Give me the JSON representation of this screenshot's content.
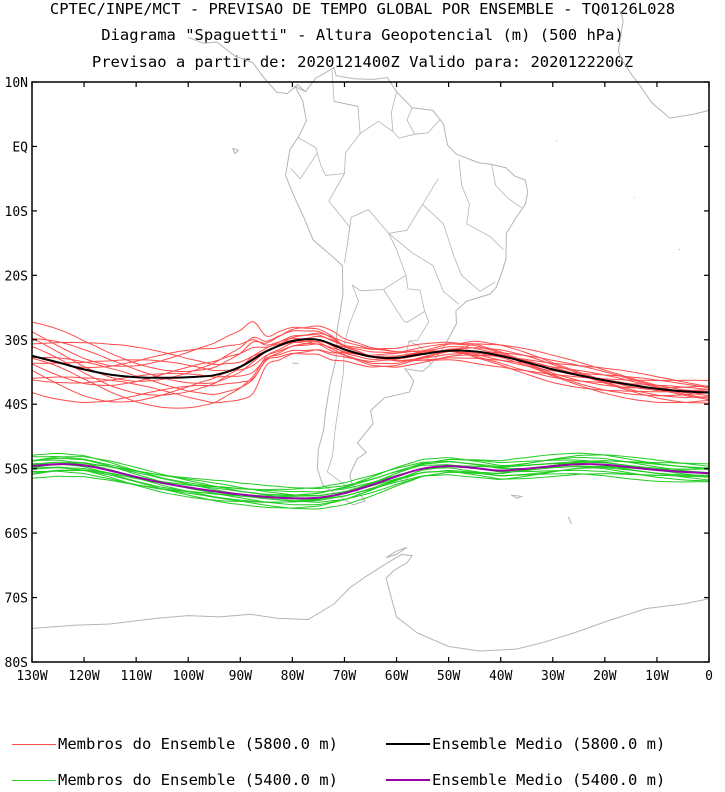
{
  "titles": {
    "line1": "CPTEC/INPE/MCT - PREVISAO DE TEMPO GLOBAL POR ENSEMBLE - TQ0126L028",
    "line2": "Diagrama \"Spaguetti\" - Altura Geopotencial (m) (500 hPa)",
    "line3": "Previsao a partir de: 2020121400Z  Valido para: 2020122200Z"
  },
  "chart_data": {
    "type": "line",
    "title": "Diagrama \"Spaguetti\" - Altura Geopotencial (m) (500 hPa)",
    "xlabel": "",
    "ylabel": "",
    "xlim": [
      -130,
      0
    ],
    "ylim": [
      -80,
      10
    ],
    "x_ticks": [
      -130,
      -120,
      -110,
      -100,
      -90,
      -80,
      -70,
      -60,
      -50,
      -40,
      -30,
      -20,
      -10,
      0
    ],
    "x_tick_labels": [
      "130W",
      "120W",
      "110W",
      "100W",
      "90W",
      "80W",
      "70W",
      "60W",
      "50W",
      "40W",
      "30W",
      "20W",
      "10W",
      "0"
    ],
    "y_ticks": [
      10,
      0,
      -10,
      -20,
      -30,
      -40,
      -50,
      -60,
      -70,
      -80
    ],
    "y_tick_labels": [
      "10N",
      "EQ",
      "10S",
      "20S",
      "30S",
      "40S",
      "50S",
      "60S",
      "70S",
      "80S"
    ],
    "colors": {
      "members_5800": "#ff4b4b",
      "mean_5800": "#000000",
      "members_5400": "#22cc22",
      "mean_5400": "#9900aa",
      "coast": "#b4b4b4"
    },
    "series": [
      {
        "name": "Ensemble Medio (5800.0 m)",
        "color": "#000000",
        "width": 2,
        "x": [
          -130,
          -125,
          -120,
          -115,
          -110,
          -105,
          -100,
          -95,
          -90,
          -85,
          -80,
          -75,
          -70,
          -65,
          -60,
          -55,
          -50,
          -45,
          -40,
          -35,
          -30,
          -25,
          -20,
          -15,
          -10,
          -5,
          0
        ],
        "y": [
          -32.5,
          -33.5,
          -34.6,
          -35.4,
          -35.8,
          -35.9,
          -35.8,
          -35.5,
          -34.2,
          -31.8,
          -30.2,
          -30.0,
          -31.5,
          -32.6,
          -32.8,
          -32.2,
          -31.7,
          -31.8,
          -32.5,
          -33.5,
          -34.6,
          -35.5,
          -36.3,
          -37.0,
          -37.6,
          -38.0,
          -38.2
        ]
      },
      {
        "name": "Ensemble Medio (5400.0 m)",
        "color": "#9900aa",
        "width": 2,
        "x": [
          -130,
          -125,
          -120,
          -115,
          -110,
          -105,
          -100,
          -95,
          -90,
          -85,
          -80,
          -75,
          -70,
          -65,
          -60,
          -55,
          -50,
          -45,
          -40,
          -35,
          -30,
          -25,
          -20,
          -15,
          -10,
          -5,
          0
        ],
        "y": [
          -49.6,
          -49.3,
          -49.5,
          -50.3,
          -51.3,
          -52.2,
          -52.9,
          -53.5,
          -54.0,
          -54.4,
          -54.6,
          -54.5,
          -53.8,
          -52.6,
          -51.2,
          -50.0,
          -49.6,
          -49.9,
          -50.3,
          -50.0,
          -49.6,
          -49.3,
          -49.4,
          -49.8,
          -50.2,
          -50.5,
          -50.7
        ]
      }
    ]
  },
  "legend": {
    "members_5800": "Membros do Ensemble (5800.0 m)",
    "mean_5800": "Ensemble Medio (5800.0 m)",
    "members_5400": "Membros do Ensemble (5400.0 m)",
    "mean_5400": "Ensemble Medio (5400.0 m)"
  }
}
